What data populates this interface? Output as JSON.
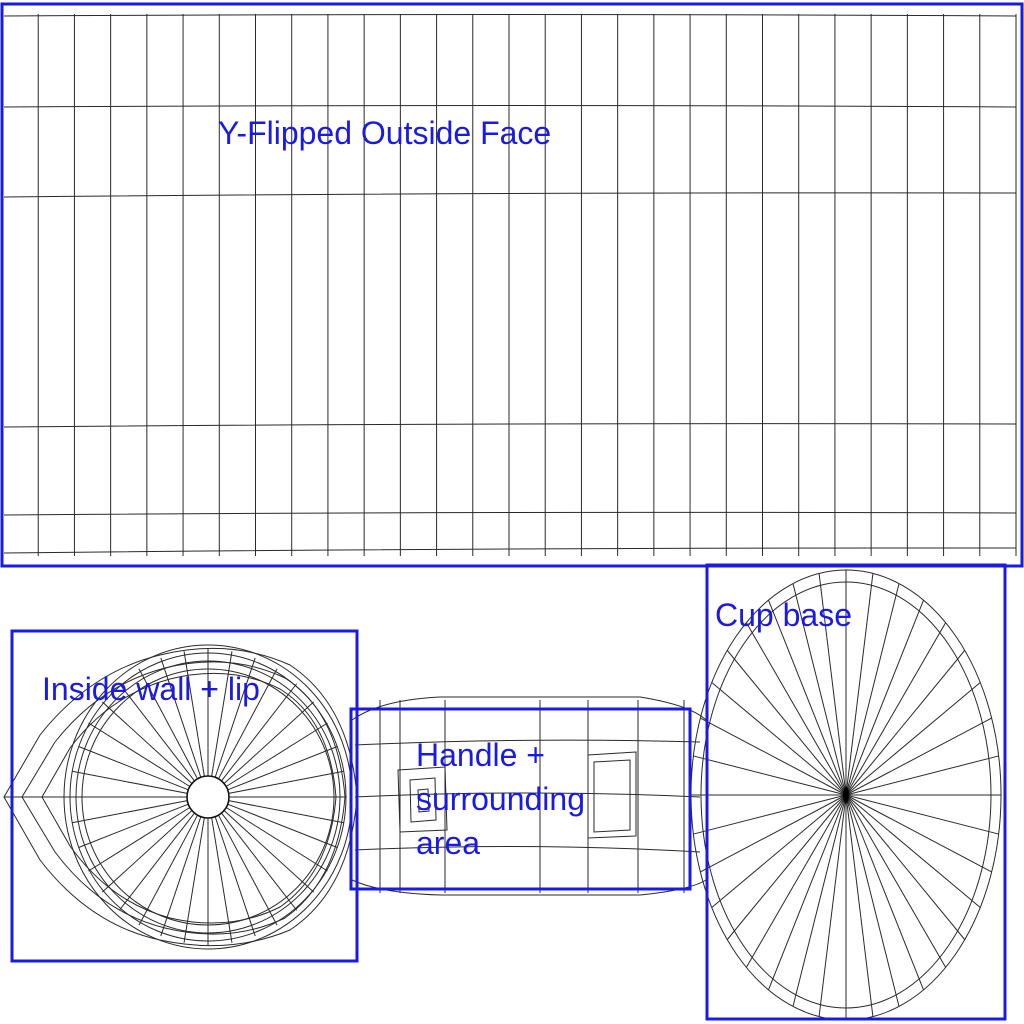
{
  "regions": {
    "outside_face": {
      "label": "Y-Flipped Outside Face"
    },
    "inside_wall": {
      "label": "Inside wall + lip"
    },
    "handle": {
      "label_lines": [
        "Handle +",
        "surrounding",
        "area"
      ]
    },
    "cup_base": {
      "label": "Cup base"
    }
  },
  "colors": {
    "annotation": "#1a1ae6",
    "wireframe": "#2a2a2a",
    "background": "#ffffff"
  }
}
